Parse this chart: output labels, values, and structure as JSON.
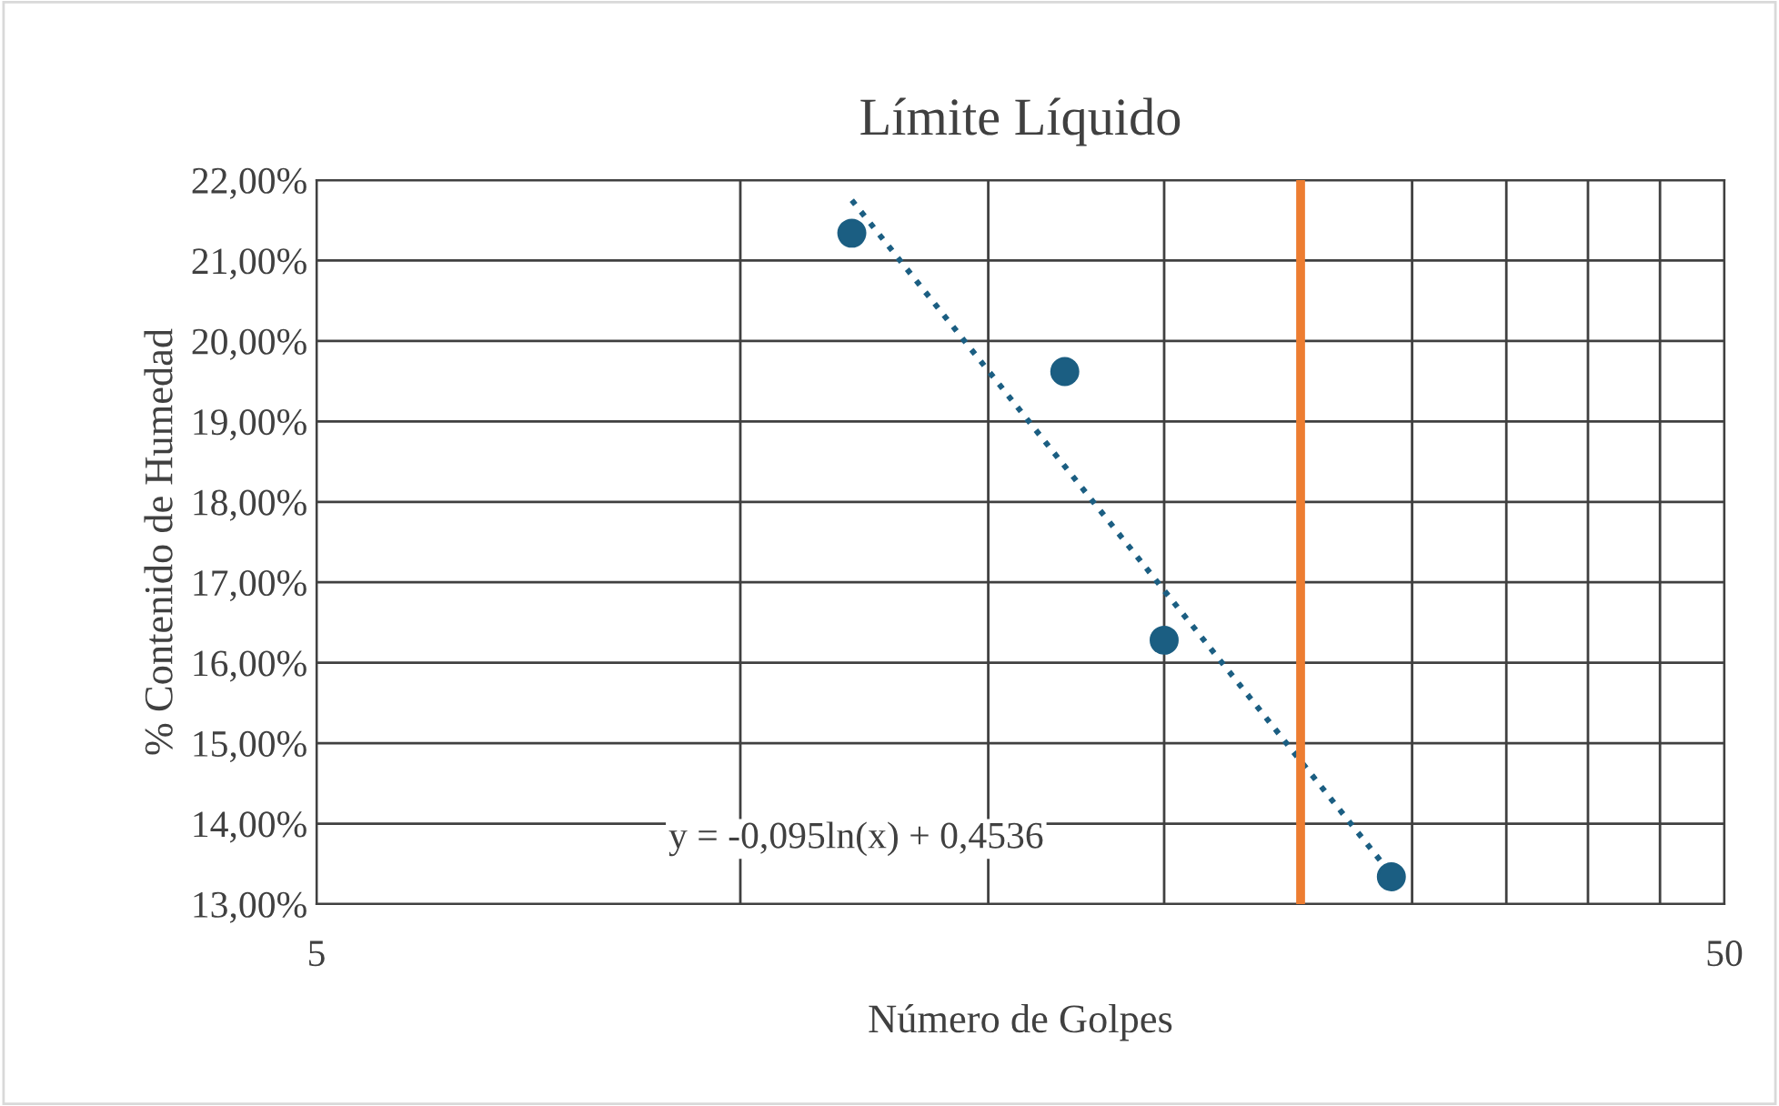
{
  "chart_data": {
    "type": "scatter",
    "title": "Límite Líquido",
    "xlabel": "Número de Golpes",
    "ylabel": "% Contenido de Humedad",
    "log": "x",
    "xlim": [
      5,
      50
    ],
    "xticks": [
      5,
      {
        "value": 10,
        "label": null
      },
      {
        "value": 15,
        "label": null
      },
      {
        "value": 20,
        "label": null
      },
      {
        "value": 25,
        "label": null
      },
      {
        "value": 30,
        "label": null
      },
      {
        "value": 35,
        "label": null
      },
      {
        "value": 40,
        "label": null
      },
      {
        "value": 45,
        "label": null
      },
      50
    ],
    "ylim": [
      13,
      22
    ],
    "yticks": [
      {
        "value": 13,
        "label": "13,00%"
      },
      {
        "value": 14,
        "label": "14,00%"
      },
      {
        "value": 15,
        "label": "15,00%"
      },
      {
        "value": 16,
        "label": "16,00%"
      },
      {
        "value": 17,
        "label": "17,00%"
      },
      {
        "value": 18,
        "label": "18,00%"
      },
      {
        "value": 19,
        "label": "19,00%"
      },
      {
        "value": 20,
        "label": "20,00%"
      },
      {
        "value": 21,
        "label": "21,00%"
      },
      {
        "value": 22,
        "label": "22,00%"
      }
    ],
    "grid": true,
    "legend": false,
    "marker": "circle",
    "series": [
      {
        "color": "#1b5e82",
        "x": [
          12,
          17,
          20,
          29
        ],
        "values": [
          21.34,
          19.62,
          16.28,
          13.34
        ]
      },
      {
        "type": "line",
        "color": "#1b5e82",
        "line_style": "dotted",
        "marker": "none",
        "x": [
          12,
          29
        ],
        "values": [
          21.75,
          13.37
        ]
      }
    ],
    "ref_lines": [
      {
        "axis": "x",
        "value": 25,
        "color": "#ed7d31"
      }
    ],
    "annotations": [
      "y = -0,095ln(x) + 0,4536"
    ]
  }
}
